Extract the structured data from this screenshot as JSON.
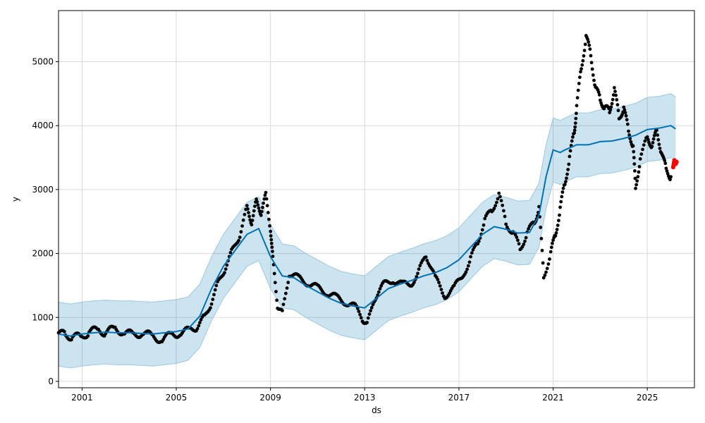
{
  "chart_data": {
    "type": "line",
    "title": "",
    "xlabel": "ds",
    "ylabel": "y",
    "x_ticks": [
      "2001",
      "2005",
      "2009",
      "2013",
      "2017",
      "2021",
      "2025"
    ],
    "y_ticks": [
      0,
      1000,
      2000,
      3000,
      4000,
      5000
    ],
    "xlim": [
      2000.0,
      2027.0
    ],
    "ylim": [
      -100,
      5800
    ],
    "grid": true,
    "legend": "none",
    "colors": {
      "actual": "#000000",
      "forecast_line": "#0072B2",
      "uncertainty_band": "#0072B2",
      "band_edge": "#9cc8e0",
      "holdout": "#ff0000"
    },
    "series": [
      {
        "kind": "forecast",
        "x": [
          2000.0,
          2000.5,
          2001.0,
          2001.5,
          2002.0,
          2002.5,
          2003.0,
          2003.5,
          2004.0,
          2004.5,
          2005.0,
          2005.5,
          2006.0,
          2006.5,
          2007.0,
          2007.5,
          2008.0,
          2008.5,
          2009.0,
          2009.5,
          2010.0,
          2010.5,
          2011.0,
          2011.5,
          2012.0,
          2012.5,
          2013.0,
          2013.5,
          2014.0,
          2014.5,
          2015.0,
          2015.5,
          2016.0,
          2016.5,
          2017.0,
          2017.5,
          2018.0,
          2018.5,
          2019.0,
          2019.5,
          2020.0,
          2020.4,
          2020.7,
          2021.0,
          2021.3,
          2021.5,
          2022.0,
          2022.5,
          2023.0,
          2023.5,
          2024.0,
          2024.5,
          2025.0,
          2025.5,
          2026.0,
          2026.2
        ],
        "yhat": [
          740,
          710,
          740,
          760,
          770,
          760,
          760,
          750,
          740,
          760,
          780,
          820,
          1020,
          1450,
          1800,
          2050,
          2300,
          2390,
          1950,
          1650,
          1620,
          1500,
          1400,
          1300,
          1220,
          1180,
          1150,
          1300,
          1450,
          1520,
          1580,
          1650,
          1700,
          1780,
          1900,
          2100,
          2300,
          2420,
          2380,
          2320,
          2330,
          2600,
          3200,
          3620,
          3580,
          3620,
          3700,
          3700,
          3750,
          3760,
          3800,
          3850,
          3940,
          3960,
          4000,
          3950
        ],
        "lower": [
          240,
          210,
          240,
          260,
          270,
          260,
          260,
          250,
          240,
          260,
          280,
          330,
          530,
          950,
          1300,
          1550,
          1800,
          1890,
          1450,
          1150,
          1120,
          1000,
          900,
          800,
          720,
          680,
          650,
          800,
          950,
          1020,
          1080,
          1150,
          1200,
          1280,
          1400,
          1600,
          1800,
          1920,
          1880,
          1820,
          1830,
          2100,
          2700,
          3120,
          3080,
          3120,
          3200,
          3200,
          3250,
          3260,
          3300,
          3350,
          3440,
          3460,
          3500,
          3450
        ],
        "upper": [
          1240,
          1210,
          1240,
          1260,
          1270,
          1260,
          1260,
          1250,
          1240,
          1260,
          1280,
          1320,
          1520,
          1950,
          2300,
          2550,
          2800,
          2890,
          2450,
          2150,
          2120,
          2000,
          1900,
          1800,
          1720,
          1680,
          1650,
          1800,
          1950,
          2020,
          2080,
          2150,
          2200,
          2280,
          2400,
          2600,
          2800,
          2920,
          2880,
          2820,
          2830,
          3100,
          3700,
          4120,
          4080,
          4120,
          4200,
          4200,
          4250,
          4260,
          4300,
          4350,
          4440,
          4460,
          4500,
          4450
        ]
      },
      {
        "kind": "actual",
        "x": [
          2000.0,
          2000.3,
          2000.6,
          2001.0,
          2001.3,
          2001.7,
          2002.0,
          2002.4,
          2002.8,
          2003.2,
          2003.6,
          2004.0,
          2004.4,
          2004.8,
          2005.2,
          2005.6,
          2005.9,
          2006.2,
          2006.5,
          2006.8,
          2007.1,
          2007.4,
          2007.7,
          2008.0,
          2008.2,
          2008.4,
          2008.6,
          2008.8,
          2009.0,
          2009.1,
          2009.3,
          2009.5,
          2009.8,
          2010.2,
          2010.6,
          2011.0,
          2011.4,
          2011.8,
          2012.2,
          2012.6,
          2012.9,
          2013.1,
          2013.4,
          2013.8,
          2014.2,
          2014.6,
          2015.0,
          2015.3,
          2015.6,
          2016.0,
          2016.4,
          2016.8,
          2017.2,
          2017.5,
          2017.8,
          2018.1,
          2018.4,
          2018.7,
          2019.0,
          2019.3,
          2019.6,
          2019.9,
          2020.2,
          2020.4,
          2020.6,
          2020.9,
          2021.1,
          2021.3,
          2021.5,
          2021.7,
          2021.9,
          2022.0,
          2022.2,
          2022.4,
          2022.6,
          2022.8,
          2023.0,
          2023.2,
          2023.4,
          2023.6,
          2023.8,
          2024.0,
          2024.2,
          2024.4,
          2024.5,
          2024.7,
          2025.0,
          2025.2,
          2025.4,
          2025.6,
          2025.8,
          2026.0
        ],
        "y": [
          760,
          720,
          700,
          690,
          780,
          800,
          760,
          830,
          760,
          730,
          760,
          700,
          650,
          730,
          760,
          800,
          860,
          1000,
          1250,
          1550,
          1800,
          2050,
          2300,
          2700,
          2500,
          2800,
          2650,
          2900,
          2400,
          1900,
          1200,
          1050,
          1700,
          1600,
          1550,
          1450,
          1400,
          1300,
          1250,
          1150,
          1000,
          860,
          1300,
          1500,
          1600,
          1500,
          1550,
          1700,
          2000,
          1600,
          1350,
          1450,
          1700,
          1900,
          2200,
          2500,
          2700,
          2900,
          2500,
          2300,
          2100,
          2300,
          2500,
          2700,
          1650,
          2000,
          2300,
          2700,
          3100,
          3500,
          3900,
          4300,
          4900,
          5400,
          5100,
          4600,
          4400,
          4300,
          4200,
          4600,
          4100,
          4300,
          3900,
          3700,
          3000,
          3500,
          3800,
          3700,
          3900,
          3600,
          3300,
          3200
        ]
      },
      {
        "kind": "holdout",
        "x": [
          2026.1,
          2026.15,
          2026.2,
          2026.25
        ],
        "y": [
          3350,
          3460,
          3400,
          3440
        ]
      }
    ]
  }
}
